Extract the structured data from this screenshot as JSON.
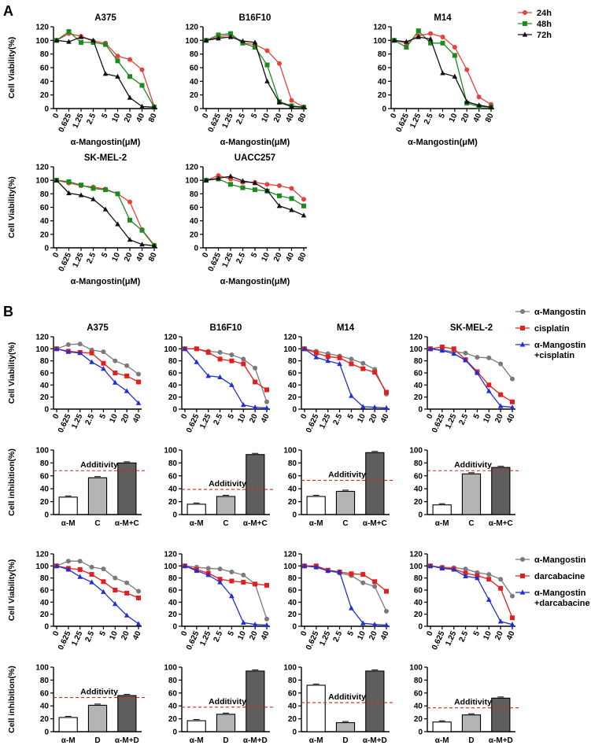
{
  "figure": {
    "panel_a_label": "A",
    "panel_b_label": "B"
  },
  "legend_a": {
    "items": [
      {
        "label": "24h",
        "color": "#e8403c",
        "marker": "circle"
      },
      {
        "label": "48h",
        "color": "#1e8a1e",
        "marker": "square"
      },
      {
        "label": "72h",
        "color": "#111111",
        "marker": "triangle"
      }
    ]
  },
  "legend_b1": {
    "items": [
      {
        "label": "α-Mangostin",
        "color": "#7a7a7a",
        "marker": "circle"
      },
      {
        "label": "cisplatin",
        "color": "#e02020",
        "marker": "square"
      },
      {
        "label": "α-Mangostin",
        "label2": "+cisplatin",
        "color": "#2030d0",
        "marker": "triangle"
      }
    ]
  },
  "legend_b2": {
    "items": [
      {
        "label": "α-Mangostin",
        "color": "#7a7a7a",
        "marker": "circle"
      },
      {
        "label": "darcabacine",
        "color": "#e02020",
        "marker": "square"
      },
      {
        "label": "α-Mangostin",
        "label2": "+darcabacine",
        "color": "#2030d0",
        "marker": "triangle"
      }
    ]
  },
  "chart_data": [
    {
      "id": "a_a375",
      "type": "line",
      "title": "A375",
      "ylabel": "Cell Viability(%)",
      "xlabel": "α-Mangostin(μM)",
      "categories": [
        "0",
        "0.625",
        "1.25",
        "2.5",
        "5",
        "10",
        "20",
        "40",
        "80"
      ],
      "ylim": [
        0,
        120
      ],
      "yticks": [
        0,
        20,
        40,
        60,
        80,
        100,
        120
      ],
      "series": [
        {
          "name": "24h",
          "values": [
            100,
            110,
            106,
            99,
            96,
            77,
            72,
            57,
            3
          ]
        },
        {
          "name": "48h",
          "values": [
            100,
            113,
            97,
            97,
            94,
            70,
            47,
            34,
            2
          ]
        },
        {
          "name": "72h",
          "values": [
            100,
            98,
            105,
            100,
            51,
            47,
            16,
            3,
            2
          ]
        }
      ]
    },
    {
      "id": "a_b16f10",
      "type": "line",
      "title": "B16F10",
      "ylabel": "",
      "xlabel": "α-Mangostin(μM)",
      "categories": [
        "0",
        "0.625",
        "1.25",
        "2.5",
        "5",
        "10",
        "20",
        "40",
        "80"
      ],
      "ylim": [
        0,
        120
      ],
      "yticks": [
        0,
        20,
        40,
        60,
        80,
        100,
        120
      ],
      "series": [
        {
          "name": "24h",
          "values": [
            100,
            105,
            108,
            96,
            94,
            85,
            66,
            12,
            2
          ]
        },
        {
          "name": "48h",
          "values": [
            100,
            108,
            110,
            96,
            90,
            64,
            10,
            4,
            2
          ]
        },
        {
          "name": "72h",
          "values": [
            100,
            103,
            105,
            99,
            97,
            40,
            9,
            3,
            2
          ]
        }
      ]
    },
    {
      "id": "a_m14",
      "type": "line",
      "title": "M14",
      "ylabel": "",
      "xlabel": "α-Mangostin(μM)",
      "categories": [
        "0",
        "0.625",
        "1.25",
        "2.5",
        "5",
        "10",
        "20",
        "40",
        "80"
      ],
      "ylim": [
        0,
        120
      ],
      "yticks": [
        0,
        20,
        40,
        60,
        80,
        100,
        120
      ],
      "series": [
        {
          "name": "24h",
          "values": [
            100,
            96,
            107,
            110,
            105,
            90,
            57,
            17,
            6
          ]
        },
        {
          "name": "48h",
          "values": [
            100,
            90,
            114,
            96,
            96,
            78,
            8,
            3,
            2
          ]
        },
        {
          "name": "72h",
          "values": [
            100,
            98,
            105,
            102,
            52,
            47,
            10,
            5,
            2
          ]
        }
      ]
    },
    {
      "id": "a_skmel2",
      "type": "line",
      "title": "SK-MEL-2",
      "ylabel": "Cell Viability(%)",
      "xlabel": "α-Mangostin(μM)",
      "categories": [
        "0",
        "0.625",
        "1.25",
        "2.5",
        "5",
        "10",
        "20",
        "40",
        "80"
      ],
      "ylim": [
        0,
        120
      ],
      "yticks": [
        0,
        20,
        40,
        60,
        80,
        100,
        120
      ],
      "series": [
        {
          "name": "24h",
          "values": [
            100,
            96,
            92,
            90,
            87,
            80,
            68,
            27,
            4
          ]
        },
        {
          "name": "48h",
          "values": [
            100,
            98,
            93,
            88,
            86,
            80,
            41,
            26,
            3
          ]
        },
        {
          "name": "72h",
          "values": [
            100,
            81,
            78,
            72,
            57,
            35,
            12,
            5,
            3
          ]
        }
      ]
    },
    {
      "id": "a_uacc257",
      "type": "line",
      "title": "UACC257",
      "ylabel": "",
      "xlabel": "α-Mangostin(μM)",
      "categories": [
        "0",
        "0.625",
        "1.25",
        "2.5",
        "5",
        "10",
        "20",
        "40",
        "80"
      ],
      "ylim": [
        0,
        120
      ],
      "yticks": [
        0,
        20,
        40,
        60,
        80,
        100,
        120
      ],
      "series": [
        {
          "name": "24h",
          "values": [
            100,
            107,
            102,
            97,
            97,
            94,
            92,
            88,
            72
          ]
        },
        {
          "name": "48h",
          "values": [
            100,
            102,
            94,
            89,
            86,
            84,
            77,
            73,
            62
          ]
        },
        {
          "name": "72h",
          "values": [
            100,
            103,
            106,
            99,
            96,
            85,
            62,
            56,
            48
          ]
        }
      ]
    },
    {
      "id": "b1_a375",
      "type": "line",
      "title": "A375",
      "ylabel": "Cell Viability(%)",
      "xlabel": "",
      "categories": [
        "0",
        "0.625",
        "1.25",
        "2.5",
        "5",
        "10",
        "20",
        "40"
      ],
      "ylim": [
        0,
        120
      ],
      "yticks": [
        0,
        20,
        40,
        60,
        80,
        100,
        120
      ],
      "series": [
        {
          "name": "α-Mangostin",
          "values": [
            100,
            107,
            108,
            98,
            95,
            80,
            72,
            58
          ]
        },
        {
          "name": "cisplatin",
          "values": [
            100,
            96,
            94,
            93,
            76,
            60,
            55,
            45
          ]
        },
        {
          "name": "α-Mangostin+cisplatin",
          "values": [
            100,
            95,
            93,
            78,
            67,
            44,
            30,
            10
          ]
        }
      ]
    },
    {
      "id": "b1_b16f10",
      "type": "line",
      "title": "B16F10",
      "ylabel": "",
      "xlabel": "",
      "categories": [
        "0",
        "0.625",
        "1.25",
        "2.5",
        "5",
        "10",
        "20",
        "40"
      ],
      "ylim": [
        0,
        120
      ],
      "yticks": [
        0,
        20,
        40,
        60,
        80,
        100,
        120
      ],
      "series": [
        {
          "name": "α-Mangostin",
          "values": [
            100,
            100,
            96,
            94,
            90,
            83,
            68,
            12
          ]
        },
        {
          "name": "cisplatin",
          "values": [
            100,
            100,
            94,
            83,
            80,
            75,
            45,
            32
          ]
        },
        {
          "name": "α-Mangostin+cisplatin",
          "values": [
            100,
            78,
            55,
            53,
            40,
            7,
            3,
            2
          ]
        }
      ]
    },
    {
      "id": "b1_m14",
      "type": "line",
      "title": "M14",
      "ylabel": "",
      "xlabel": "",
      "categories": [
        "0",
        "0.625",
        "1.25",
        "2.5",
        "5",
        "10",
        "20",
        "40"
      ],
      "ylim": [
        0,
        120
      ],
      "yticks": [
        0,
        20,
        40,
        60,
        80,
        100,
        120
      ],
      "series": [
        {
          "name": "α-Mangostin",
          "values": [
            100,
            96,
            92,
            88,
            83,
            76,
            66,
            25
          ]
        },
        {
          "name": "cisplatin",
          "values": [
            100,
            93,
            87,
            85,
            75,
            67,
            61,
            28
          ]
        },
        {
          "name": "α-Mangostin+cisplatin",
          "values": [
            100,
            86,
            80,
            75,
            22,
            4,
            3,
            2
          ]
        }
      ]
    },
    {
      "id": "b1_skmel2",
      "type": "line",
      "title": "SK-MEL-2",
      "ylabel": "",
      "xlabel": "",
      "categories": [
        "0",
        "0.625",
        "1.25",
        "2.5",
        "5",
        "10",
        "20",
        "40"
      ],
      "ylim": [
        0,
        120
      ],
      "yticks": [
        0,
        20,
        40,
        60,
        80,
        100,
        120
      ],
      "series": [
        {
          "name": "α-Mangostin",
          "values": [
            100,
            98,
            95,
            93,
            86,
            85,
            75,
            50
          ]
        },
        {
          "name": "cisplatin",
          "values": [
            100,
            103,
            100,
            82,
            62,
            40,
            24,
            12
          ]
        },
        {
          "name": "α-Mangostin+cisplatin",
          "values": [
            100,
            97,
            92,
            81,
            60,
            30,
            5,
            3
          ]
        }
      ]
    },
    {
      "id": "b1_bar_a375",
      "type": "bar",
      "ylabel": "Cell inhibition(%)",
      "categories": [
        "α-M",
        "C",
        "α-M+C"
      ],
      "values": [
        27,
        57,
        80
      ],
      "additivity": 68,
      "additivity_label": "Additivity",
      "ylim": [
        0,
        100
      ],
      "yticks": [
        0,
        20,
        40,
        60,
        80,
        100
      ]
    },
    {
      "id": "b1_bar_b16f10",
      "type": "bar",
      "ylabel": "",
      "categories": [
        "α-M",
        "C",
        "α-M+C"
      ],
      "values": [
        16,
        28,
        93
      ],
      "additivity": 39,
      "additivity_label": "Additivity",
      "ylim": [
        0,
        100
      ],
      "yticks": [
        0,
        20,
        40,
        60,
        80,
        100
      ]
    },
    {
      "id": "b1_bar_m14",
      "type": "bar",
      "ylabel": "",
      "categories": [
        "α-M",
        "C",
        "α-M+C"
      ],
      "values": [
        28,
        36,
        96
      ],
      "additivity": 53,
      "additivity_label": "Additivity",
      "ylim": [
        0,
        100
      ],
      "yticks": [
        0,
        20,
        40,
        60,
        80,
        100
      ]
    },
    {
      "id": "b1_bar_skmel2",
      "type": "bar",
      "ylabel": "",
      "categories": [
        "α-M",
        "C",
        "α-M+C"
      ],
      "values": [
        15,
        63,
        73
      ],
      "additivity": 68,
      "additivity_label": "Additivity",
      "ylim": [
        0,
        100
      ],
      "yticks": [
        0,
        20,
        40,
        60,
        80,
        100
      ]
    },
    {
      "id": "b2_a375",
      "type": "line",
      "title": "",
      "ylabel": "Cell Viability(%)",
      "xlabel": "",
      "categories": [
        "0",
        "0.625",
        "1.25",
        "2.5",
        "5",
        "10",
        "20",
        "40"
      ],
      "ylim": [
        0,
        120
      ],
      "yticks": [
        0,
        20,
        40,
        60,
        80,
        100,
        120
      ],
      "series": [
        {
          "name": "α-Mangostin",
          "values": [
            100,
            108,
            108,
            98,
            95,
            80,
            72,
            58
          ]
        },
        {
          "name": "darcabacine",
          "values": [
            100,
            96,
            94,
            86,
            74,
            60,
            55,
            47
          ]
        },
        {
          "name": "α-Mangostin+darcabacine",
          "values": [
            100,
            94,
            82,
            73,
            57,
            37,
            18,
            4
          ]
        }
      ]
    },
    {
      "id": "b2_b16f10",
      "type": "line",
      "title": "",
      "ylabel": "",
      "xlabel": "",
      "categories": [
        "0",
        "0.625",
        "1.25",
        "2.5",
        "5",
        "10",
        "20",
        "40"
      ],
      "ylim": [
        0,
        120
      ],
      "yticks": [
        0,
        20,
        40,
        60,
        80,
        100,
        120
      ],
      "series": [
        {
          "name": "α-Mangostin",
          "values": [
            100,
            98,
            96,
            95,
            90,
            85,
            70,
            12
          ]
        },
        {
          "name": "darcabacine",
          "values": [
            100,
            94,
            88,
            78,
            75,
            73,
            70,
            68
          ]
        },
        {
          "name": "α-Mangostin+darcabacine",
          "values": [
            100,
            92,
            85,
            73,
            50,
            6,
            3,
            2
          ]
        }
      ]
    },
    {
      "id": "b2_m14",
      "type": "line",
      "title": "",
      "ylabel": "",
      "xlabel": "",
      "categories": [
        "0",
        "0.625",
        "1.25",
        "2.5",
        "5",
        "10",
        "20",
        "40"
      ],
      "ylim": [
        0,
        120
      ],
      "yticks": [
        0,
        20,
        40,
        60,
        80,
        100,
        120
      ],
      "series": [
        {
          "name": "α-Mangostin",
          "values": [
            100,
            98,
            92,
            88,
            84,
            72,
            66,
            25
          ]
        },
        {
          "name": "darcabacine",
          "values": [
            100,
            100,
            93,
            90,
            87,
            86,
            74,
            58
          ]
        },
        {
          "name": "α-Mangostin+darcabacine",
          "values": [
            100,
            98,
            92,
            90,
            30,
            5,
            3,
            2
          ]
        }
      ]
    },
    {
      "id": "b2_skmel2",
      "type": "line",
      "title": "",
      "ylabel": "",
      "xlabel": "",
      "categories": [
        "0",
        "0.625",
        "1.25",
        "2.5",
        "5",
        "10",
        "20",
        "40"
      ],
      "ylim": [
        0,
        120
      ],
      "yticks": [
        0,
        20,
        40,
        60,
        80,
        100,
        120
      ],
      "series": [
        {
          "name": "α-Mangostin",
          "values": [
            100,
            98,
            97,
            95,
            89,
            86,
            78,
            50
          ]
        },
        {
          "name": "darcabacine",
          "values": [
            100,
            97,
            95,
            88,
            84,
            78,
            63,
            14
          ]
        },
        {
          "name": "α-Mangostin+darcabacine",
          "values": [
            100,
            96,
            94,
            83,
            80,
            44,
            8,
            3
          ]
        }
      ]
    },
    {
      "id": "b2_bar_a375",
      "type": "bar",
      "ylabel": "Cell inhibition(%)",
      "categories": [
        "α-M",
        "D",
        "α-M+D"
      ],
      "values": [
        22,
        41,
        56
      ],
      "additivity": 53,
      "additivity_label": "Additivity",
      "ylim": [
        0,
        100
      ],
      "yticks": [
        0,
        20,
        40,
        60,
        80,
        100
      ]
    },
    {
      "id": "b2_bar_b16f10",
      "type": "bar",
      "ylabel": "",
      "categories": [
        "α-M",
        "D",
        "α-M+D"
      ],
      "values": [
        17,
        27,
        94
      ],
      "additivity": 38,
      "additivity_label": "Additivity",
      "ylim": [
        0,
        100
      ],
      "yticks": [
        0,
        20,
        40,
        60,
        80,
        100
      ]
    },
    {
      "id": "b2_bar_m14",
      "type": "bar",
      "ylabel": "",
      "categories": [
        "α-M",
        "D",
        "α-M+D"
      ],
      "values": [
        72,
        14,
        94
      ],
      "additivity": 45,
      "additivity_label": "Additivity",
      "ylim": [
        0,
        100
      ],
      "yticks": [
        0,
        20,
        40,
        60,
        80,
        100
      ]
    },
    {
      "id": "b2_bar_skmel2",
      "type": "bar",
      "ylabel": "",
      "categories": [
        "α-M",
        "D",
        "α-M+D"
      ],
      "values": [
        15,
        26,
        52
      ],
      "additivity": 37,
      "additivity_label": "Additivity",
      "ylim": [
        0,
        100
      ],
      "yticks": [
        0,
        20,
        40,
        60,
        80,
        100
      ]
    }
  ]
}
